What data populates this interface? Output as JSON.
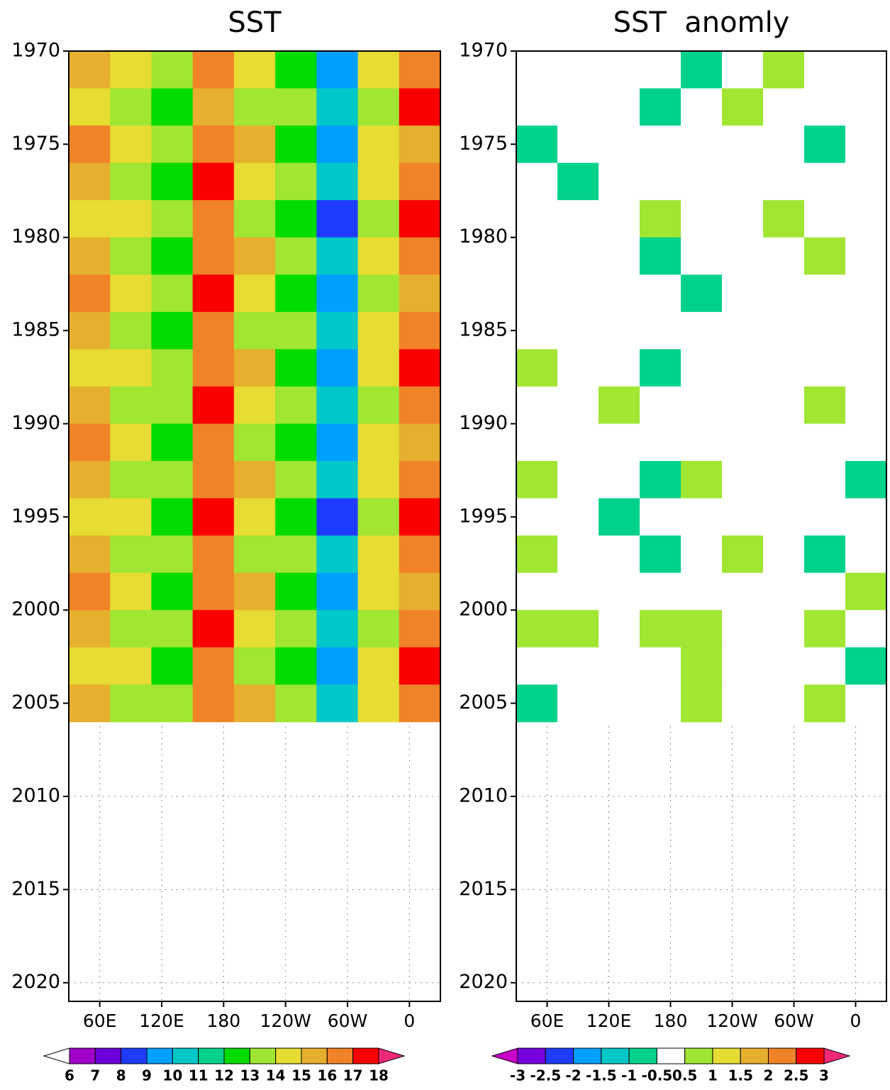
{
  "chart_data": [
    {
      "type": "heatmap",
      "title": "SST",
      "x": [
        50,
        90,
        130,
        170,
        210,
        250,
        290,
        330,
        370
      ],
      "y": [
        1971,
        1973,
        1975,
        1977,
        1979,
        1981,
        1983,
        1985,
        1987,
        1989,
        1991,
        1993,
        1995,
        1997,
        1999,
        2001,
        2003,
        2005
      ],
      "z": [
        [
          15,
          14,
          13,
          16,
          14,
          12,
          9,
          14,
          16
        ],
        [
          14,
          13,
          12,
          15,
          13,
          13,
          10,
          13,
          17
        ],
        [
          16,
          14,
          13,
          16,
          15,
          12,
          9,
          14,
          15
        ],
        [
          15,
          13,
          12,
          17,
          14,
          13,
          10,
          14,
          16
        ],
        [
          14,
          14,
          13,
          16,
          13,
          12,
          8,
          13,
          17
        ],
        [
          15,
          13,
          12,
          16,
          15,
          13,
          10,
          14,
          16
        ],
        [
          16,
          14,
          13,
          17,
          14,
          12,
          9,
          13,
          15
        ],
        [
          15,
          13,
          12,
          16,
          13,
          13,
          10,
          14,
          16
        ],
        [
          14,
          14,
          13,
          16,
          15,
          12,
          9,
          14,
          17
        ],
        [
          15,
          13,
          13,
          17,
          14,
          13,
          10,
          13,
          16
        ],
        [
          16,
          14,
          12,
          16,
          13,
          12,
          9,
          14,
          15
        ],
        [
          15,
          13,
          13,
          16,
          15,
          13,
          10,
          14,
          16
        ],
        [
          14,
          14,
          12,
          17,
          14,
          12,
          8,
          13,
          17
        ],
        [
          15,
          13,
          13,
          16,
          13,
          13,
          10,
          14,
          16
        ],
        [
          16,
          14,
          12,
          16,
          15,
          12,
          9,
          14,
          15
        ],
        [
          15,
          13,
          13,
          17,
          14,
          13,
          10,
          13,
          16
        ],
        [
          14,
          14,
          12,
          16,
          13,
          12,
          9,
          14,
          17
        ],
        [
          15,
          13,
          13,
          16,
          15,
          13,
          10,
          14,
          16
        ]
      ],
      "xlim": [
        30,
        390
      ],
      "ylim": [
        1970,
        2021
      ],
      "xticks": [
        {
          "value": 60,
          "label": "60E"
        },
        {
          "value": 120,
          "label": "120E"
        },
        180,
        {
          "value": 240,
          "label": "120W"
        },
        {
          "value": 300,
          "label": "60W"
        },
        {
          "value": 360,
          "label": "0"
        }
      ],
      "yticks": [
        1970,
        1975,
        1980,
        1985,
        1990,
        1995,
        2000,
        2005,
        2010,
        2015,
        2020
      ],
      "grid": true,
      "levels": [
        6,
        7,
        8,
        9,
        10,
        11,
        12,
        13,
        14,
        15,
        16,
        17,
        18
      ],
      "colors": [
        "#ffffff",
        "#a000c8",
        "#6e00dc",
        "#1e3cff",
        "#00a0ff",
        "#00c8c8",
        "#00d28c",
        "#00dc00",
        "#a0e632",
        "#e6dc32",
        "#e6af2d",
        "#f08228",
        "#fa0000",
        "#f0287a"
      ]
    },
    {
      "type": "heatmap",
      "title": "SST  anomly",
      "x": [
        50,
        90,
        130,
        170,
        210,
        250,
        290,
        330,
        370
      ],
      "y": [
        1971,
        1973,
        1975,
        1977,
        1979,
        1981,
        1983,
        1985,
        1987,
        1989,
        1991,
        1993,
        1995,
        1997,
        1999,
        2001,
        2003,
        2005
      ],
      "z": [
        [
          0.1,
          0,
          -0.2,
          0.2,
          -0.7,
          0,
          0.6,
          0.1,
          -0.1
        ],
        [
          0,
          -0.1,
          0.1,
          -0.6,
          0,
          0.6,
          0,
          -0.2,
          0.2
        ],
        [
          -0.6,
          0.2,
          0,
          -0.1,
          0.3,
          0,
          -0.1,
          -0.6,
          0
        ],
        [
          0,
          -0.6,
          0.1,
          0,
          -0.2,
          0.1,
          0,
          0.2,
          -0.1
        ],
        [
          -0.1,
          0,
          0.2,
          0.6,
          0,
          0.1,
          0.7,
          -0.1,
          0.2
        ],
        [
          0.1,
          -0.2,
          0,
          -0.7,
          0.2,
          -0.1,
          0,
          0.6,
          0
        ],
        [
          0,
          0.1,
          -0.1,
          0,
          -0.8,
          0.2,
          0.1,
          0,
          -0.2
        ],
        [
          -0.2,
          0,
          0.1,
          0.2,
          0,
          -0.1,
          0,
          -0.2,
          0.1
        ],
        [
          0.7,
          0.1,
          -0.1,
          -0.6,
          0.1,
          0,
          0.1,
          0,
          -0.1
        ],
        [
          0,
          -0.2,
          0.6,
          0.1,
          0,
          -0.1,
          0,
          0.6,
          0.2
        ],
        [
          0.1,
          0,
          -0.1,
          0,
          -0.2,
          0.1,
          0.2,
          -0.1,
          0
        ],
        [
          0.6,
          -0.1,
          0,
          -0.7,
          0.6,
          0,
          0.1,
          0,
          -0.6
        ],
        [
          0,
          0.2,
          -0.6,
          0,
          0.1,
          -0.2,
          0,
          0.1,
          0.2
        ],
        [
          0.6,
          0,
          0.1,
          -0.6,
          0,
          0.6,
          0,
          -0.6,
          0.1
        ],
        [
          0.2,
          -0.1,
          0,
          0.1,
          0.2,
          0,
          -0.1,
          0.2,
          0.6
        ],
        [
          0.7,
          0.6,
          0.1,
          0.7,
          0.6,
          0.1,
          0.1,
          0.6,
          -0.1
        ],
        [
          -0.1,
          0,
          -0.2,
          0,
          0.6,
          0.2,
          0,
          0.1,
          -0.7
        ],
        [
          -0.6,
          0.1,
          0,
          0,
          0.7,
          0.2,
          -0.1,
          0.6,
          0.1
        ]
      ],
      "xlim": [
        30,
        390
      ],
      "ylim": [
        1970,
        2021
      ],
      "xticks": [
        {
          "value": 60,
          "label": "60E"
        },
        {
          "value": 120,
          "label": "120E"
        },
        180,
        {
          "value": 240,
          "label": "120W"
        },
        {
          "value": 300,
          "label": "60W"
        },
        {
          "value": 360,
          "label": "0"
        }
      ],
      "yticks": [
        1970,
        1975,
        1980,
        1985,
        1990,
        1995,
        2000,
        2005,
        2010,
        2015,
        2020
      ],
      "grid": true,
      "levels": [
        -3,
        -2.5,
        -2,
        -1.5,
        -1,
        -0.5,
        0.5,
        1,
        1.5,
        2,
        2.5,
        3
      ],
      "colors": [
        "#c800c8",
        "#7800dc",
        "#1e3cff",
        "#00a0ff",
        "#00c8c8",
        "#00d28c",
        "#ffffff",
        "#a0e632",
        "#e6dc32",
        "#e6af2d",
        "#f08228",
        "#fa0000",
        "#f0287a"
      ]
    }
  ]
}
